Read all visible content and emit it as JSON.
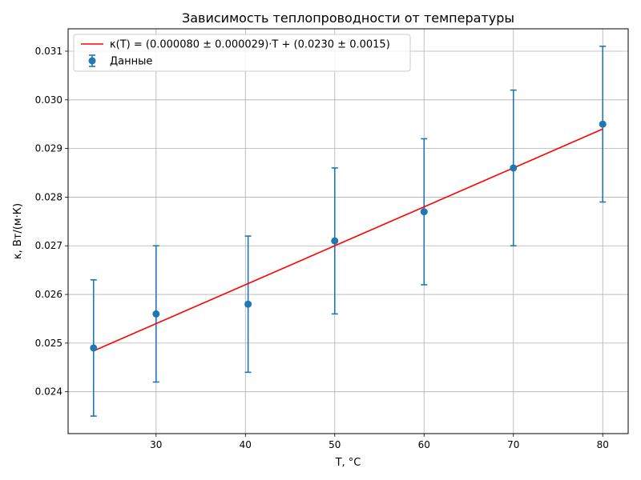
{
  "chart_data": {
    "type": "scatter",
    "title": "Зависимость теплопроводности от температуры",
    "xlabel": "T, °C",
    "ylabel": "κ, Вт/(м·К)",
    "xlim": [
      20.15,
      82.85
    ],
    "ylim": [
      0.02314,
      0.03146
    ],
    "xticks": [
      "30",
      "40",
      "50",
      "60",
      "70",
      "80"
    ],
    "yticks": [
      "0.024",
      "0.025",
      "0.026",
      "0.027",
      "0.028",
      "0.029",
      "0.030",
      "0.031"
    ],
    "grid": true,
    "legend_position": "top-left",
    "series": [
      {
        "name": "Данные",
        "kind": "errorbar",
        "color": "#1f77b4",
        "x": [
          23.0,
          30.0,
          40.3,
          50.0,
          60.0,
          70.0,
          80.0
        ],
        "y": [
          0.0249,
          0.0256,
          0.0258,
          0.0271,
          0.0277,
          0.0286,
          0.0295
        ],
        "yerr": [
          0.0014,
          0.0014,
          0.0014,
          0.0015,
          0.0015,
          0.0016,
          0.0016
        ]
      },
      {
        "name": "κ(T) = (0.000080 ± 0.000029)·T + (0.0230 ± 0.0015)",
        "kind": "line",
        "color": "#ff0000",
        "x": [
          23.0,
          80.0
        ],
        "y": [
          0.02484,
          0.0294
        ]
      }
    ]
  }
}
